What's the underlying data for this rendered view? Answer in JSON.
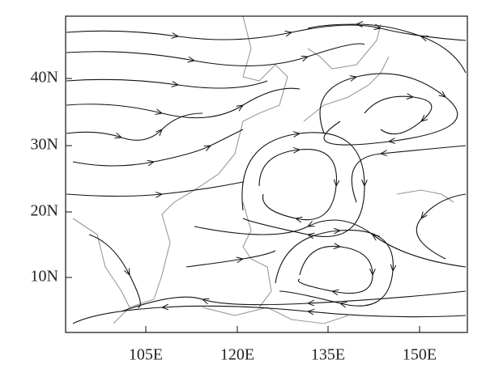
{
  "map": {
    "x_ticks": [
      "105E",
      "120E",
      "135E",
      "150E"
    ],
    "y_ticks": [
      "40N",
      "30N",
      "20N",
      "10N"
    ]
  }
}
